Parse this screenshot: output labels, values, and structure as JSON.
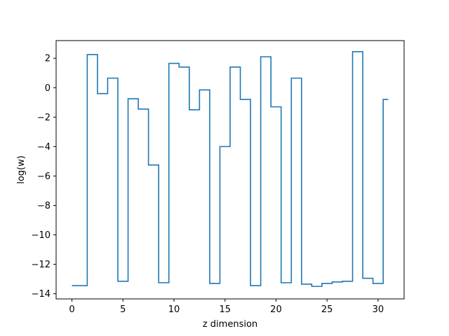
{
  "chart_data": {
    "type": "line",
    "drawstyle": "steps-mid",
    "xlabel": "z dimension",
    "ylabel": "log(w)",
    "xlim": [
      -1.55,
      32.55
    ],
    "ylim": [
      -14.35,
      3.2
    ],
    "xticks": [
      0,
      5,
      10,
      15,
      20,
      25,
      30
    ],
    "yticks": [
      2,
      0,
      -2,
      -4,
      -6,
      -8,
      -10,
      -12,
      -14
    ],
    "ytick_labels": [
      "2",
      "0",
      "−2",
      "−4",
      "−6",
      "−8",
      "−10",
      "−12",
      "−14"
    ],
    "grid": false,
    "series": [
      {
        "color": "#1f77b4",
        "x": [
          0,
          1,
          2,
          3,
          4,
          5,
          6,
          7,
          8,
          9,
          10,
          11,
          12,
          13,
          14,
          15,
          16,
          17,
          18,
          19,
          20,
          21,
          22,
          23,
          24,
          25,
          26,
          27,
          28,
          29,
          30,
          31
        ],
        "y": [
          -13.45,
          -13.45,
          2.25,
          -0.4,
          0.65,
          -13.15,
          -0.75,
          -1.45,
          -5.25,
          -13.25,
          1.65,
          1.4,
          -1.5,
          -0.15,
          -13.3,
          -4.0,
          1.4,
          -0.8,
          -13.45,
          2.1,
          -1.3,
          -13.25,
          0.65,
          -13.35,
          -13.5,
          -13.3,
          -13.2,
          -13.15,
          2.45,
          -12.95,
          -13.3,
          -0.8
        ]
      }
    ]
  }
}
